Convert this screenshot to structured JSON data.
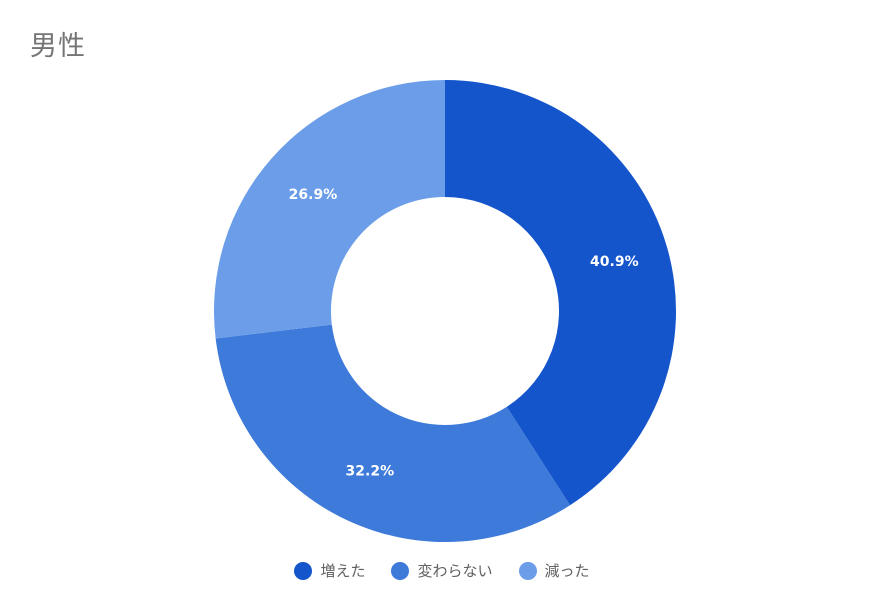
{
  "title": "男性",
  "chart_data": {
    "type": "pie",
    "title": "男性",
    "donut": true,
    "legend_position": "bottom",
    "slices": [
      {
        "label": "増えた",
        "value": 40.9,
        "display": "40.9%",
        "color": "#1455cc"
      },
      {
        "label": "変わらない",
        "value": 32.2,
        "display": "32.2%",
        "color": "#3d7ad9"
      },
      {
        "label": "減った",
        "value": 26.9,
        "display": "26.9%",
        "color": "#6b9de8"
      }
    ]
  }
}
